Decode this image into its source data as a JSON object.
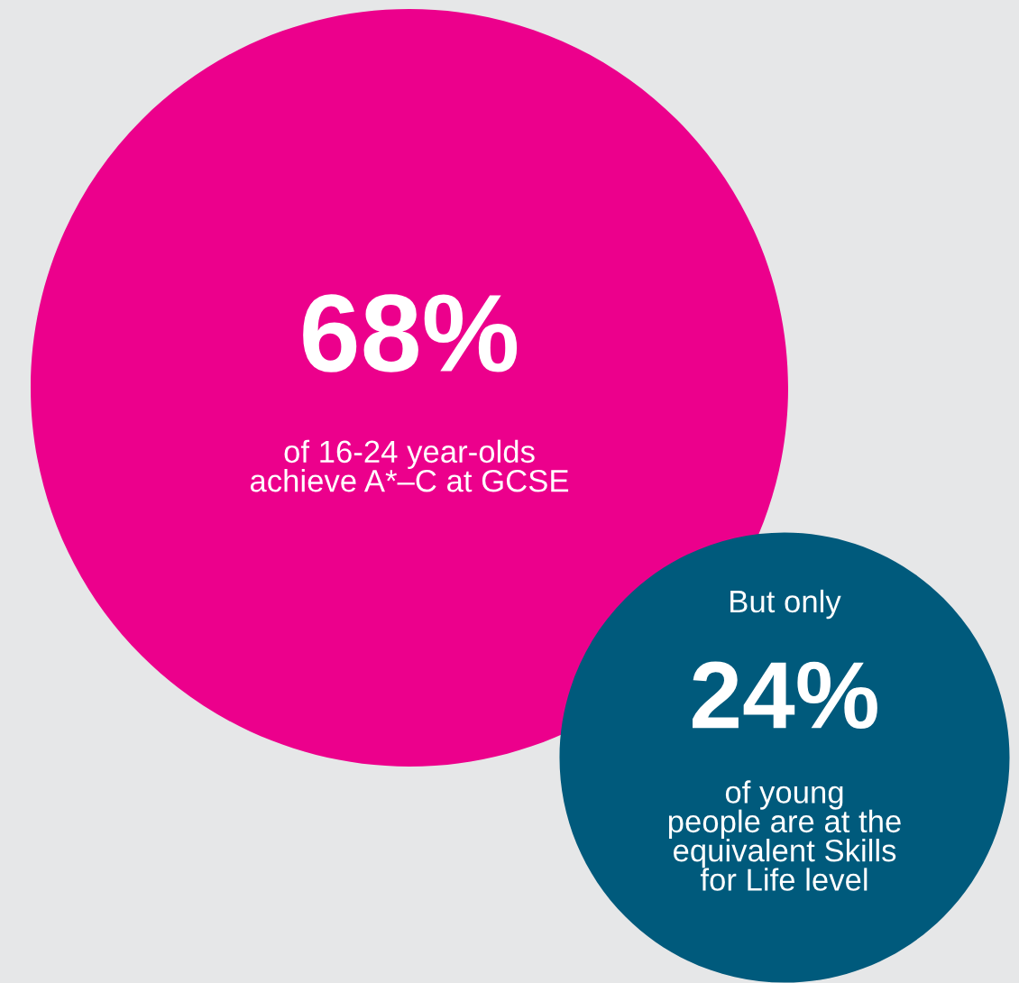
{
  "chart_data": {
    "type": "other",
    "categories": [
      "of 16-24 year-olds\nachieve A*–C at GCSE",
      "of young\npeople are at the\nequivalent Skills\nfor Life level"
    ],
    "values": [
      68,
      24
    ],
    "value_labels": [
      "68%",
      "24%"
    ],
    "colors": [
      "#ec008c",
      "#005a7c"
    ],
    "annotations": [
      "But only"
    ]
  }
}
